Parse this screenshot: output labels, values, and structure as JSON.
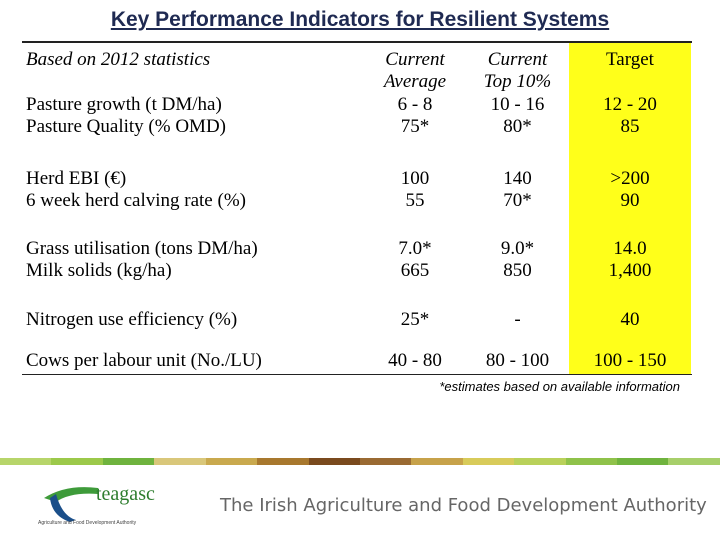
{
  "title": "Key Performance Indicators for Resilient Systems",
  "header": {
    "label": "Based on 2012 statistics",
    "current_average": [
      "Current",
      "Average"
    ],
    "current_top": [
      "Current",
      "Top 10%"
    ],
    "target": "Target"
  },
  "rows": [
    {
      "labels": [
        "Pasture growth (t DM/ha)",
        "Pasture Quality (% OMD)"
      ],
      "avg": [
        "6 - 8",
        "75*"
      ],
      "top": [
        "10 - 16",
        "80*"
      ],
      "target": [
        "12 - 20",
        "85"
      ]
    },
    {
      "labels": [
        "Herd EBI (€)",
        "6 week herd calving rate (%)"
      ],
      "avg": [
        "100",
        "55"
      ],
      "top": [
        "140",
        "70*"
      ],
      "target": [
        ">200",
        "90"
      ]
    },
    {
      "labels": [
        "Grass utilisation (tons DM/ha)",
        "Milk solids (kg/ha)"
      ],
      "avg": [
        "7.0*",
        "665"
      ],
      "top": [
        "9.0*",
        "850"
      ],
      "target": [
        "14.0",
        "1,400"
      ]
    },
    {
      "labels": [
        "Nitrogen use efficiency (%)"
      ],
      "avg": [
        "25*"
      ],
      "top": [
        "-"
      ],
      "target": [
        "40"
      ]
    },
    {
      "labels": [
        "Cows per labour unit (No./LU)"
      ],
      "avg": [
        "40 - 80"
      ],
      "top": [
        "80 - 100"
      ],
      "target": [
        "100 - 150"
      ]
    }
  ],
  "footnote": "*estimates based on available information",
  "footer": {
    "logo_text": "teagasc",
    "logo_tagline": "Agriculture and Food Development Authority",
    "agency_name": "The Irish Agriculture and Food Development Authority"
  },
  "colors": {
    "target_highlight": "#ffff1a",
    "title": "#1f2a52",
    "logo_green": "#3e9b3a",
    "logo_blue": "#1b4f8a"
  }
}
